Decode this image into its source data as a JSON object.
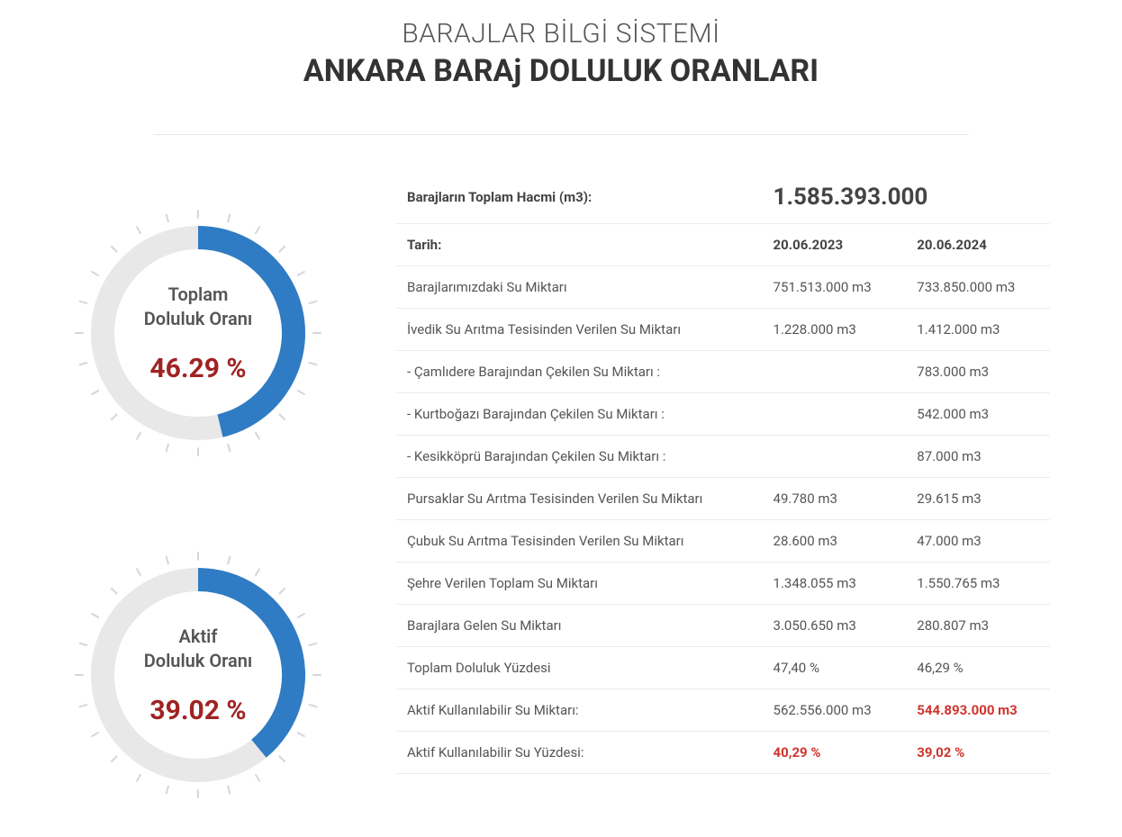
{
  "header": {
    "system_title": "BARAJLAR BİLGİ SİSTEMİ",
    "page_title": "ANKARA BARAj DOLULUK ORANLARI"
  },
  "gauges": [
    {
      "label_line1": "Toplam",
      "label_line2": "Doluluk Oranı",
      "value_text": "46.29 %",
      "percent": 46.29,
      "arc_color": "#2f7cc4",
      "track_color": "#e8e8e8",
      "value_color": "#a02323",
      "stroke_width": 26,
      "tick_color": "#d6d6d6"
    },
    {
      "label_line1": "Aktif",
      "label_line2": "Doluluk Oranı",
      "value_text": "39.02 %",
      "percent": 39.02,
      "arc_color": "#2f7cc4",
      "track_color": "#e8e8e8",
      "value_color": "#a02323",
      "stroke_width": 26,
      "tick_color": "#d6d6d6"
    }
  ],
  "table": {
    "total_volume_label": "Barajların Toplam Hacmi (m3):",
    "total_volume_value": "1.585.393.000",
    "date_label": "Tarih:",
    "date_a": "20.06.2023",
    "date_b": "20.06.2024",
    "rows": [
      {
        "label": "Barajlarımızdaki Su Miktarı",
        "a": "751.513.000 m3",
        "b": "733.850.000 m3",
        "hl_a": false,
        "hl_b": false
      },
      {
        "label": "İvedik Su Arıtma Tesisinden Verilen Su Miktarı",
        "a": "1.228.000 m3",
        "b": "1.412.000 m3",
        "hl_a": false,
        "hl_b": false
      },
      {
        "label": "- Çamlıdere Barajından Çekilen Su Miktarı :",
        "a": "",
        "b": "783.000 m3",
        "hl_a": false,
        "hl_b": false
      },
      {
        "label": "- Kurtboğazı Barajından Çekilen Su Miktarı :",
        "a": "",
        "b": "542.000 m3",
        "hl_a": false,
        "hl_b": false
      },
      {
        "label": "- Kesikköprü Barajından Çekilen Su Miktarı :",
        "a": "",
        "b": "87.000 m3",
        "hl_a": false,
        "hl_b": false
      },
      {
        "label": "Pursaklar Su Arıtma Tesisinden Verilen Su Miktarı",
        "a": "49.780 m3",
        "b": "29.615 m3",
        "hl_a": false,
        "hl_b": false
      },
      {
        "label": "Çubuk Su Arıtma Tesisinden Verilen Su Miktarı",
        "a": "28.600 m3",
        "b": "47.000 m3",
        "hl_a": false,
        "hl_b": false
      },
      {
        "label": "Şehre Verilen Toplam Su Miktarı",
        "a": "1.348.055 m3",
        "b": "1.550.765 m3",
        "hl_a": false,
        "hl_b": false
      },
      {
        "label": "Barajlara Gelen Su Miktarı",
        "a": "3.050.650 m3",
        "b": "280.807 m3",
        "hl_a": false,
        "hl_b": false
      },
      {
        "label": "Toplam Doluluk Yüzdesi",
        "a": "47,40 %",
        "b": "46,29 %",
        "hl_a": false,
        "hl_b": false
      },
      {
        "label": "Aktif Kullanılabilir Su Miktarı:",
        "a": "562.556.000 m3",
        "b": "544.893.000 m3",
        "hl_a": false,
        "hl_b": true
      },
      {
        "label": "Aktif Kullanılabilir Su Yüzdesi:",
        "a": "40,29 %",
        "b": "39,02 %",
        "hl_a": true,
        "hl_b": true
      }
    ]
  },
  "style": {
    "background": "#ffffff",
    "border_color": "#ececec",
    "text_color": "#555555",
    "highlight_color": "#d0342c"
  }
}
